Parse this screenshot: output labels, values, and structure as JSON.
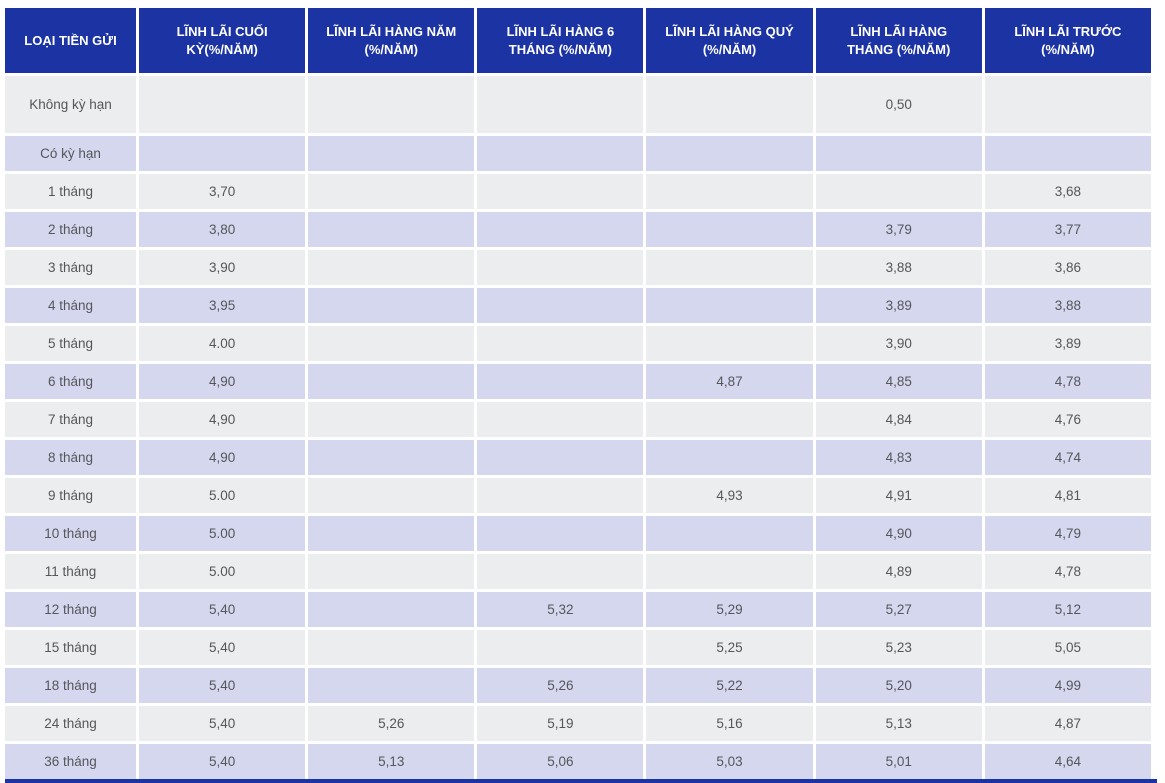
{
  "colors": {
    "header_bg": "#1c33a3",
    "row_gray": "#ebedee",
    "row_lavender": "#d5d7ef",
    "header_text": "#ffffff",
    "cell_text": "#55565a"
  },
  "table": {
    "columns": [
      "LOẠI TIỀN GỬI",
      "LĨNH LÃI CUỐI KỲ(%/NĂM)",
      "LĨNH LÃI HÀNG NĂM (%/NĂM)",
      "LĨNH LÃI HÀNG 6 THÁNG (%/NĂM)",
      "LĨNH LÃI HÀNG QUÝ (%/NĂM)",
      "LĨNH LÃI HÀNG THÁNG (%/NĂM)",
      "LĨNH LÃI TRƯỚC (%/NĂM)"
    ],
    "rows": [
      {
        "label": "Không kỳ hạn",
        "values": [
          "",
          "",
          "",
          "",
          "0,50",
          ""
        ]
      },
      {
        "label": "Có kỳ hạn",
        "values": [
          "",
          "",
          "",
          "",
          "",
          ""
        ]
      },
      {
        "label": "1 tháng",
        "values": [
          "3,70",
          "",
          "",
          "",
          "",
          "3,68"
        ]
      },
      {
        "label": "2 tháng",
        "values": [
          "3,80",
          "",
          "",
          "",
          "3,79",
          "3,77"
        ]
      },
      {
        "label": "3 tháng",
        "values": [
          "3,90",
          "",
          "",
          "",
          "3,88",
          "3,86"
        ]
      },
      {
        "label": "4 tháng",
        "values": [
          "3,95",
          "",
          "",
          "",
          "3,89",
          "3,88"
        ]
      },
      {
        "label": "5 tháng",
        "values": [
          "4.00",
          "",
          "",
          "",
          "3,90",
          "3,89"
        ]
      },
      {
        "label": "6 tháng",
        "values": [
          "4,90",
          "",
          "",
          "4,87",
          "4,85",
          "4,78"
        ]
      },
      {
        "label": "7 tháng",
        "values": [
          "4,90",
          "",
          "",
          "",
          "4,84",
          "4,76"
        ]
      },
      {
        "label": "8 tháng",
        "values": [
          "4,90",
          "",
          "",
          "",
          "4,83",
          "4,74"
        ]
      },
      {
        "label": "9 tháng",
        "values": [
          "5.00",
          "",
          "",
          "4,93",
          "4,91",
          "4,81"
        ]
      },
      {
        "label": "10 tháng",
        "values": [
          "5.00",
          "",
          "",
          "",
          "4,90",
          "4,79"
        ]
      },
      {
        "label": "11 tháng",
        "values": [
          "5.00",
          "",
          "",
          "",
          "4,89",
          "4,78"
        ]
      },
      {
        "label": "12 tháng",
        "values": [
          "5,40",
          "",
          "5,32",
          "5,29",
          "5,27",
          "5,12"
        ]
      },
      {
        "label": "15 tháng",
        "values": [
          "5,40",
          "",
          "",
          "5,25",
          "5,23",
          "5,05"
        ]
      },
      {
        "label": "18 tháng",
        "values": [
          "5,40",
          "",
          "5,26",
          "5,22",
          "5,20",
          "4,99"
        ]
      },
      {
        "label": "24 tháng",
        "values": [
          "5,40",
          "5,26",
          "5,19",
          "5,16",
          "5,13",
          "4,87"
        ]
      },
      {
        "label": "36 tháng",
        "values": [
          "5,40",
          "5,13",
          "5,06",
          "5,03",
          "5,01",
          "4,64"
        ]
      }
    ]
  }
}
